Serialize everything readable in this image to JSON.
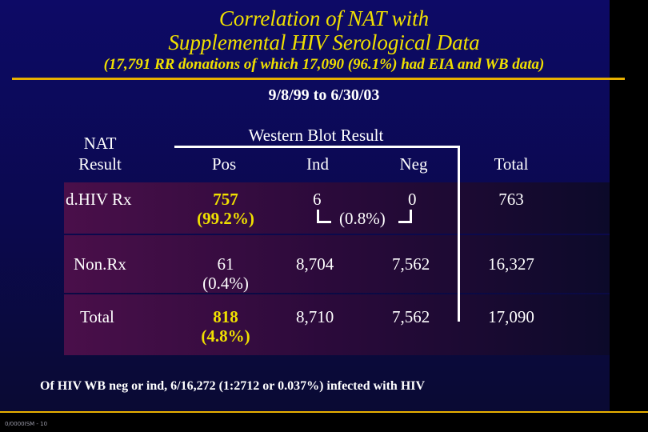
{
  "title_line1": "Correlation of NAT with",
  "title_line2": "Supplemental HIV Serological Data",
  "subtitle": "(17,791 RR donations of which 17,090 (96.1%) had EIA and WB data)",
  "period": "9/8/99 to 6/30/03",
  "header": {
    "nat_result_line1": "NAT",
    "nat_result_line2": "Result",
    "wb_result": "Western Blot Result",
    "pos": "Pos",
    "ind": "Ind",
    "neg": "Neg",
    "total": "Total"
  },
  "rows": [
    {
      "label": "d.HIV Rx",
      "pos": "757",
      "pos_pct": "(99.2%)",
      "ind": "6",
      "neg": "0",
      "indneg_pct": "(0.8%)",
      "total": "763"
    },
    {
      "label": "Non.Rx",
      "pos": "61",
      "pos_pct": "(0.4%)",
      "ind": "8,704",
      "neg": "7,562",
      "total": "16,327"
    },
    {
      "label": "Total",
      "pos": "818",
      "pos_pct": "(4.8%)",
      "ind": "8,710",
      "neg": "7,562",
      "total": "17,090"
    }
  ],
  "footnote": "Of HIV WB neg or ind, 6/16,272 (1:2712 or 0.037%) infected with HIV",
  "slide_id": "0/0000ISM - 10"
}
